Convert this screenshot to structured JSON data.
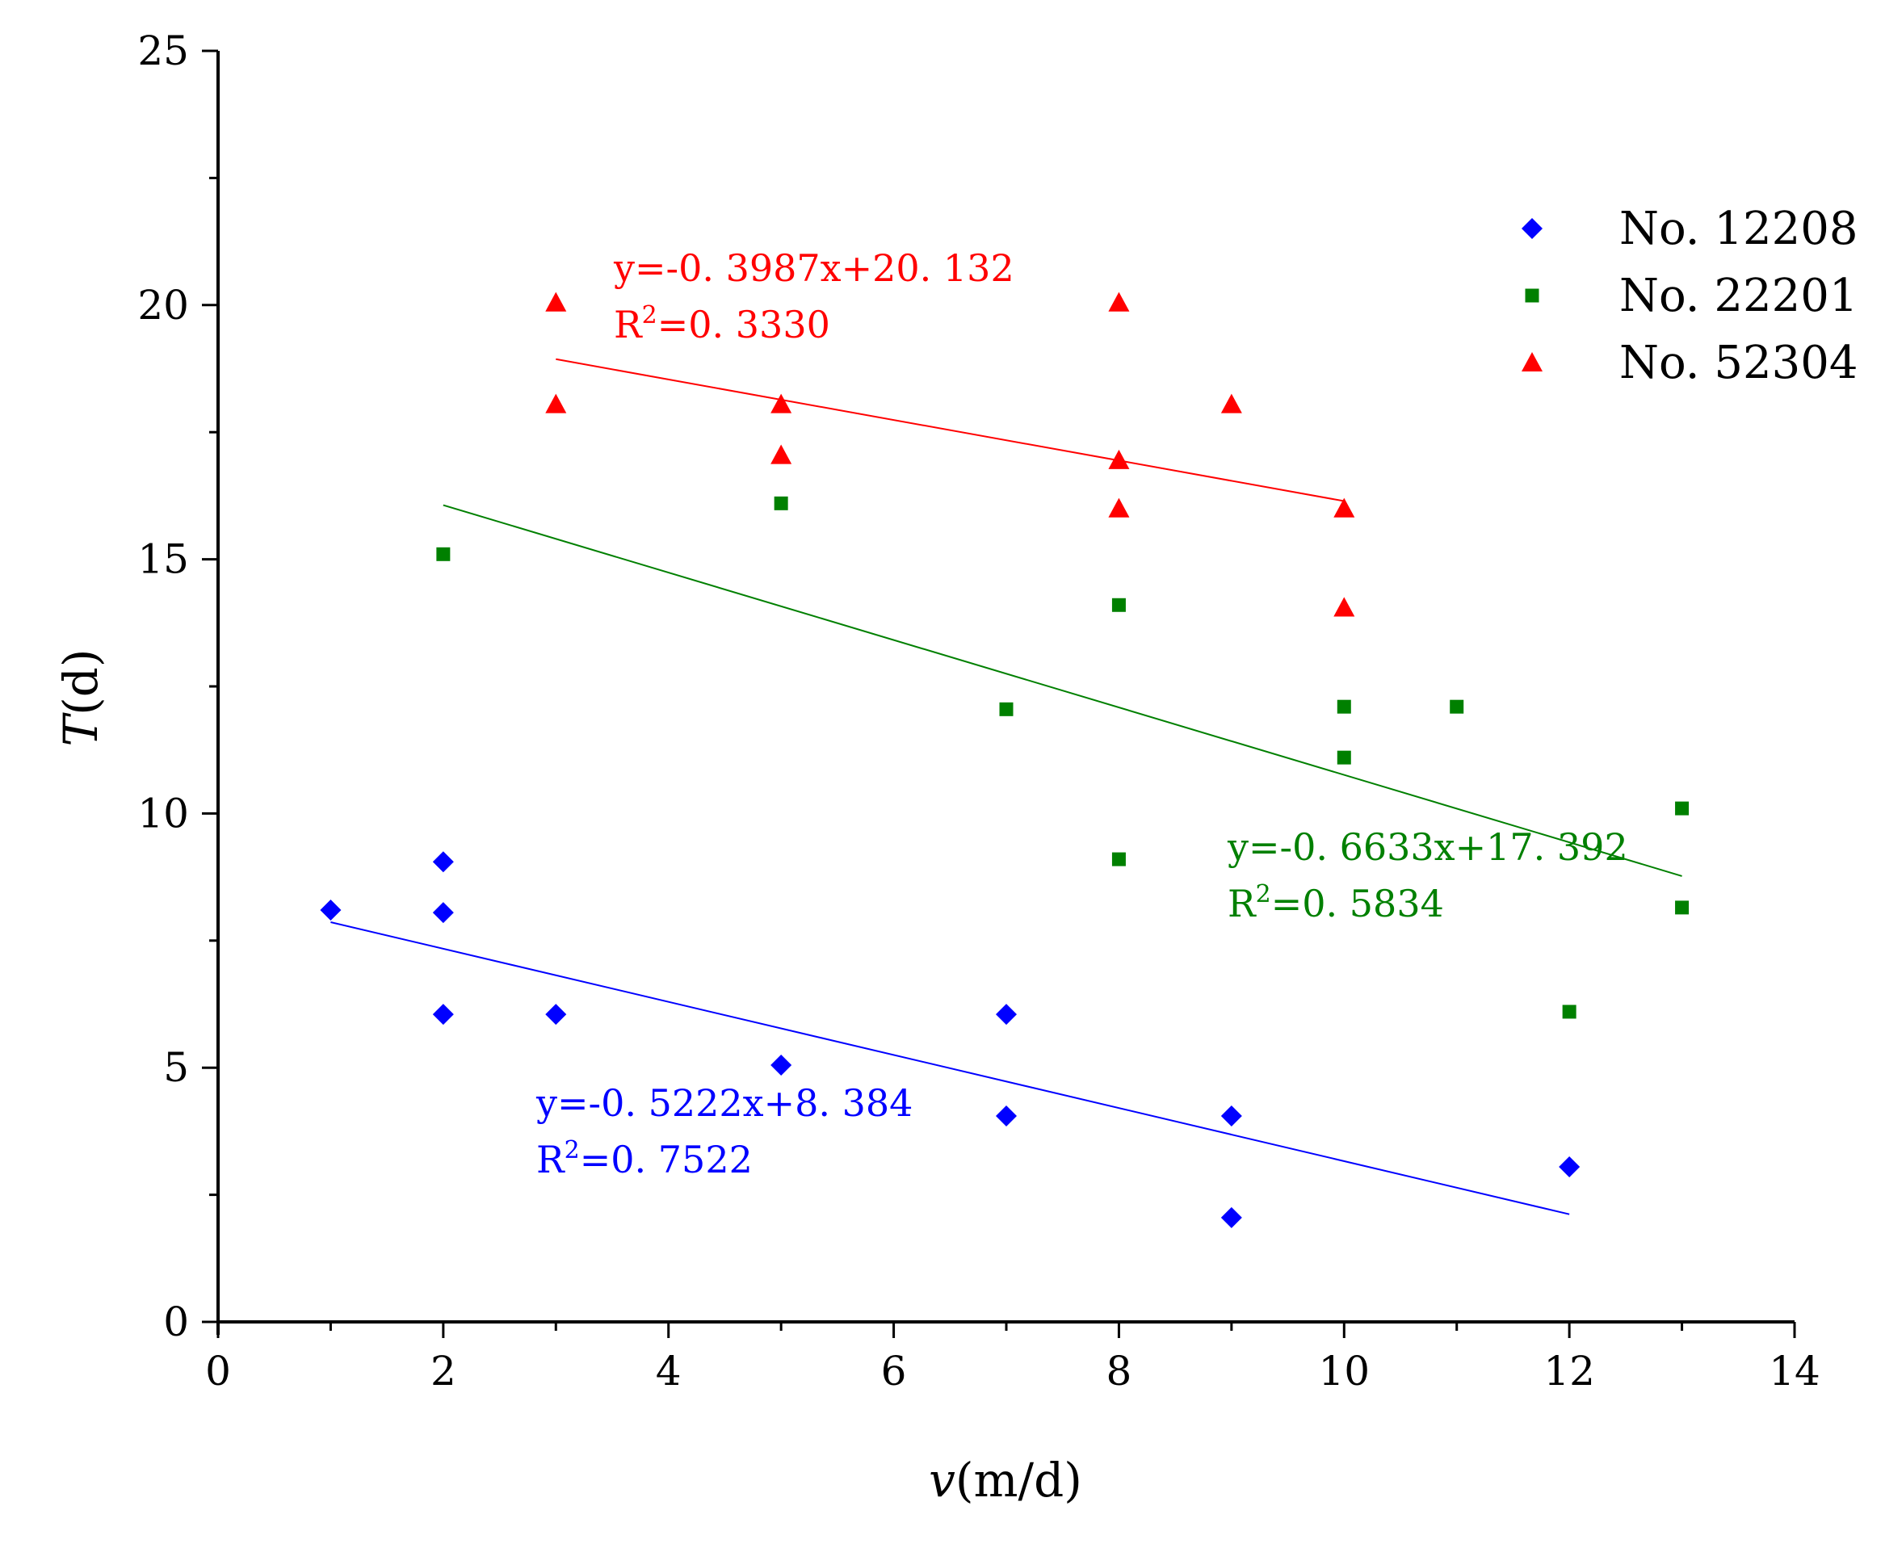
{
  "chart_data": {
    "type": "scatter",
    "title": "",
    "xlabel": {
      "var": "v",
      "unit": "(m/d)"
    },
    "ylabel": {
      "var": "T",
      "unit": "(d)"
    },
    "xlim": [
      0,
      14
    ],
    "ylim": [
      0,
      25
    ],
    "x_ticks": [
      "0",
      "2",
      "4",
      "6",
      "8",
      "10",
      "12",
      "14"
    ],
    "y_ticks": [
      "0",
      "5",
      "10",
      "15",
      "20",
      "25"
    ],
    "grid": false,
    "legend_position": "top-right",
    "series": [
      {
        "name": "No. 12208",
        "color": "#0000ff",
        "marker": "diamond",
        "points": [
          [
            1,
            8.1
          ],
          [
            2,
            9.05
          ],
          [
            2,
            8.05
          ],
          [
            2,
            6.05
          ],
          [
            3,
            6.05
          ],
          [
            5,
            5.05
          ],
          [
            7,
            6.05
          ],
          [
            7,
            4.05
          ],
          [
            9,
            4.05
          ],
          [
            9,
            2.05
          ],
          [
            12,
            3.05
          ]
        ],
        "fit": {
          "slope": -0.5222,
          "intercept": 8.384,
          "x_range": [
            1,
            12
          ]
        },
        "equation": "y=-0. 5222x+8. 384",
        "r2_prefix": "R",
        "r2_value": "=0. 7522"
      },
      {
        "name": "No. 22201",
        "color": "#008000",
        "marker": "square",
        "points": [
          [
            2,
            15.1
          ],
          [
            5,
            16.1
          ],
          [
            7,
            12.05
          ],
          [
            8,
            14.1
          ],
          [
            8,
            9.1
          ],
          [
            10,
            12.1
          ],
          [
            10,
            11.1
          ],
          [
            11,
            12.1
          ],
          [
            12,
            6.1
          ],
          [
            13,
            10.1
          ],
          [
            13,
            8.15
          ]
        ],
        "fit": {
          "slope": -0.6633,
          "intercept": 17.392,
          "x_range": [
            2,
            13
          ]
        },
        "equation": "y=-0. 6633x+17. 392",
        "r2_prefix": "R",
        "r2_value": "=0. 5834"
      },
      {
        "name": "No. 52304",
        "color": "#ff0000",
        "marker": "triangle",
        "points": [
          [
            3,
            20.05
          ],
          [
            3,
            18.05
          ],
          [
            5,
            18.05
          ],
          [
            5,
            17.05
          ],
          [
            8,
            20.05
          ],
          [
            8,
            16.95
          ],
          [
            8,
            16.0
          ],
          [
            9,
            18.05
          ],
          [
            10,
            16.0
          ],
          [
            10,
            14.05
          ]
        ],
        "fit": {
          "slope": -0.3987,
          "intercept": 20.132,
          "x_range": [
            3,
            10
          ]
        },
        "equation": "y=-0. 3987x+20. 132",
        "r2_prefix": "R",
        "r2_value": "=0. 3330"
      }
    ]
  }
}
